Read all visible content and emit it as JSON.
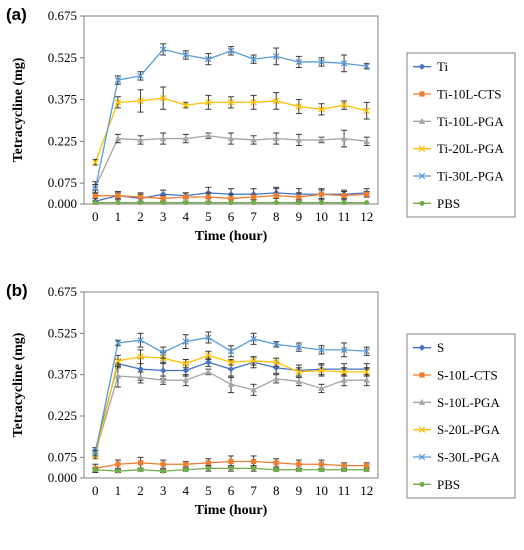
{
  "chart_data": [
    {
      "panel_label": "(a)",
      "type": "line",
      "xlabel": "Time (hour)",
      "ylabel": "Tetracycline (mg)",
      "x": [
        0,
        1,
        2,
        3,
        4,
        5,
        6,
        7,
        8,
        9,
        10,
        11,
        12
      ],
      "xticks": [
        "0",
        "1",
        "2",
        "3",
        "4",
        "5",
        "6",
        "7",
        "8",
        "9",
        "10",
        "11",
        "12"
      ],
      "yticks": [
        "0.000",
        "0.075",
        "0.225",
        "0.375",
        "0.525",
        "0.675"
      ],
      "ylim": [
        0,
        0.675
      ],
      "legend_position": "right",
      "error_bars": true,
      "series": [
        {
          "name": "Ti",
          "color": "#4472C4",
          "marker": "diamond",
          "values": [
            0.01,
            0.03,
            0.02,
            0.035,
            0.03,
            0.04,
            0.035,
            0.035,
            0.04,
            0.035,
            0.035,
            0.035,
            0.04
          ],
          "errors": [
            0.01,
            0.01,
            0.015,
            0.015,
            0.01,
            0.02,
            0.02,
            0.02,
            0.02,
            0.02,
            0.02,
            0.015,
            0.015
          ]
        },
        {
          "name": "Ti-10L-CTS",
          "color": "#ED7D31",
          "marker": "square",
          "values": [
            0.03,
            0.03,
            0.025,
            0.02,
            0.025,
            0.025,
            0.02,
            0.025,
            0.03,
            0.025,
            0.035,
            0.03,
            0.035
          ],
          "errors": [
            0.02,
            0.015,
            0.015,
            0.01,
            0.015,
            0.015,
            0.015,
            0.01,
            0.025,
            0.015,
            0.015,
            0.015,
            0.01
          ]
        },
        {
          "name": "Ti-10L-PGA",
          "color": "#A5A5A5",
          "marker": "triangle",
          "values": [
            0.06,
            0.235,
            0.23,
            0.235,
            0.235,
            0.245,
            0.235,
            0.23,
            0.235,
            0.23,
            0.23,
            0.235,
            0.225
          ],
          "errors": [
            0.02,
            0.015,
            0.015,
            0.02,
            0.015,
            0.01,
            0.02,
            0.015,
            0.02,
            0.02,
            0.01,
            0.03,
            0.015
          ]
        },
        {
          "name": "Ti-20L-PGA",
          "color": "#FFC000",
          "marker": "x",
          "values": [
            0.15,
            0.365,
            0.37,
            0.38,
            0.355,
            0.365,
            0.365,
            0.365,
            0.37,
            0.35,
            0.34,
            0.355,
            0.335
          ],
          "errors": [
            0.01,
            0.02,
            0.04,
            0.04,
            0.01,
            0.025,
            0.02,
            0.025,
            0.03,
            0.025,
            0.02,
            0.015,
            0.03
          ]
        },
        {
          "name": "Ti-30L-PGA",
          "color": "#5B9BD5",
          "marker": "x",
          "values": [
            0.055,
            0.445,
            0.46,
            0.555,
            0.535,
            0.52,
            0.55,
            0.52,
            0.53,
            0.51,
            0.51,
            0.505,
            0.495
          ],
          "errors": [
            0.015,
            0.015,
            0.015,
            0.02,
            0.015,
            0.02,
            0.015,
            0.015,
            0.03,
            0.02,
            0.015,
            0.03,
            0.01
          ]
        },
        {
          "name": "PBS",
          "color": "#70AD47",
          "marker": "circle",
          "values": [
            0.005,
            0.005,
            0.005,
            0.005,
            0.005,
            0.005,
            0.005,
            0.005,
            0.005,
            0.005,
            0.005,
            0.005,
            0.005
          ],
          "errors": [
            0,
            0,
            0,
            0,
            0,
            0,
            0,
            0,
            0,
            0,
            0,
            0,
            0
          ]
        }
      ]
    },
    {
      "panel_label": "(b)",
      "type": "line",
      "xlabel": "Time (hour)",
      "ylabel": "Tetracycline (mg)",
      "x": [
        0,
        1,
        2,
        3,
        4,
        5,
        6,
        7,
        8,
        9,
        10,
        11,
        12
      ],
      "xticks": [
        "0",
        "1",
        "2",
        "3",
        "4",
        "5",
        "6",
        "7",
        "8",
        "9",
        "10",
        "11",
        "12"
      ],
      "yticks": [
        "0.000",
        "0.075",
        "0.225",
        "0.375",
        "0.525",
        "0.675"
      ],
      "ylim": [
        0,
        0.675
      ],
      "legend_position": "right",
      "error_bars": true,
      "series": [
        {
          "name": "S",
          "color": "#4472C4",
          "marker": "diamond",
          "values": [
            0.1,
            0.415,
            0.395,
            0.39,
            0.39,
            0.42,
            0.395,
            0.42,
            0.4,
            0.39,
            0.395,
            0.395,
            0.395
          ],
          "errors": [
            0.01,
            0.015,
            0.04,
            0.03,
            0.02,
            0.015,
            0.03,
            0.02,
            0.02,
            0.02,
            0.02,
            0.02,
            0.02
          ]
        },
        {
          "name": "S-10L-CTS",
          "color": "#ED7D31",
          "marker": "square",
          "values": [
            0.035,
            0.05,
            0.055,
            0.05,
            0.05,
            0.055,
            0.06,
            0.06,
            0.055,
            0.05,
            0.05,
            0.045,
            0.045
          ],
          "errors": [
            0.015,
            0.015,
            0.02,
            0.015,
            0.01,
            0.015,
            0.02,
            0.02,
            0.015,
            0.015,
            0.015,
            0.01,
            0.01
          ]
        },
        {
          "name": "S-10L-PGA",
          "color": "#A5A5A5",
          "marker": "triangle",
          "values": [
            0.09,
            0.37,
            0.365,
            0.355,
            0.355,
            0.385,
            0.34,
            0.32,
            0.36,
            0.35,
            0.325,
            0.355,
            0.355
          ],
          "errors": [
            0.01,
            0.04,
            0.02,
            0.015,
            0.02,
            0.01,
            0.03,
            0.02,
            0.015,
            0.015,
            0.015,
            0.02,
            0.02
          ]
        },
        {
          "name": "S-20L-PGA",
          "color": "#FFC000",
          "marker": "x",
          "values": [
            0.08,
            0.425,
            0.44,
            0.435,
            0.415,
            0.445,
            0.42,
            0.425,
            0.42,
            0.385,
            0.39,
            0.385,
            0.385
          ],
          "errors": [
            0.01,
            0.02,
            0.025,
            0.02,
            0.015,
            0.015,
            0.01,
            0.015,
            0.015,
            0.015,
            0.02,
            0.015,
            0.015
          ]
        },
        {
          "name": "S-30L-PGA",
          "color": "#5B9BD5",
          "marker": "x",
          "values": [
            0.09,
            0.49,
            0.5,
            0.455,
            0.495,
            0.51,
            0.46,
            0.505,
            0.485,
            0.475,
            0.465,
            0.465,
            0.46
          ],
          "errors": [
            0.01,
            0.01,
            0.025,
            0.02,
            0.025,
            0.02,
            0.02,
            0.02,
            0.01,
            0.015,
            0.015,
            0.025,
            0.015
          ]
        },
        {
          "name": "PBS",
          "color": "#70AD47",
          "marker": "circle",
          "values": [
            0.03,
            0.025,
            0.03,
            0.025,
            0.03,
            0.035,
            0.035,
            0.035,
            0.03,
            0.03,
            0.03,
            0.03,
            0.03
          ],
          "errors": [
            0.005,
            0.005,
            0.005,
            0.005,
            0.005,
            0.01,
            0.01,
            0.01,
            0.005,
            0.005,
            0.005,
            0.005,
            0.005
          ]
        }
      ]
    }
  ]
}
